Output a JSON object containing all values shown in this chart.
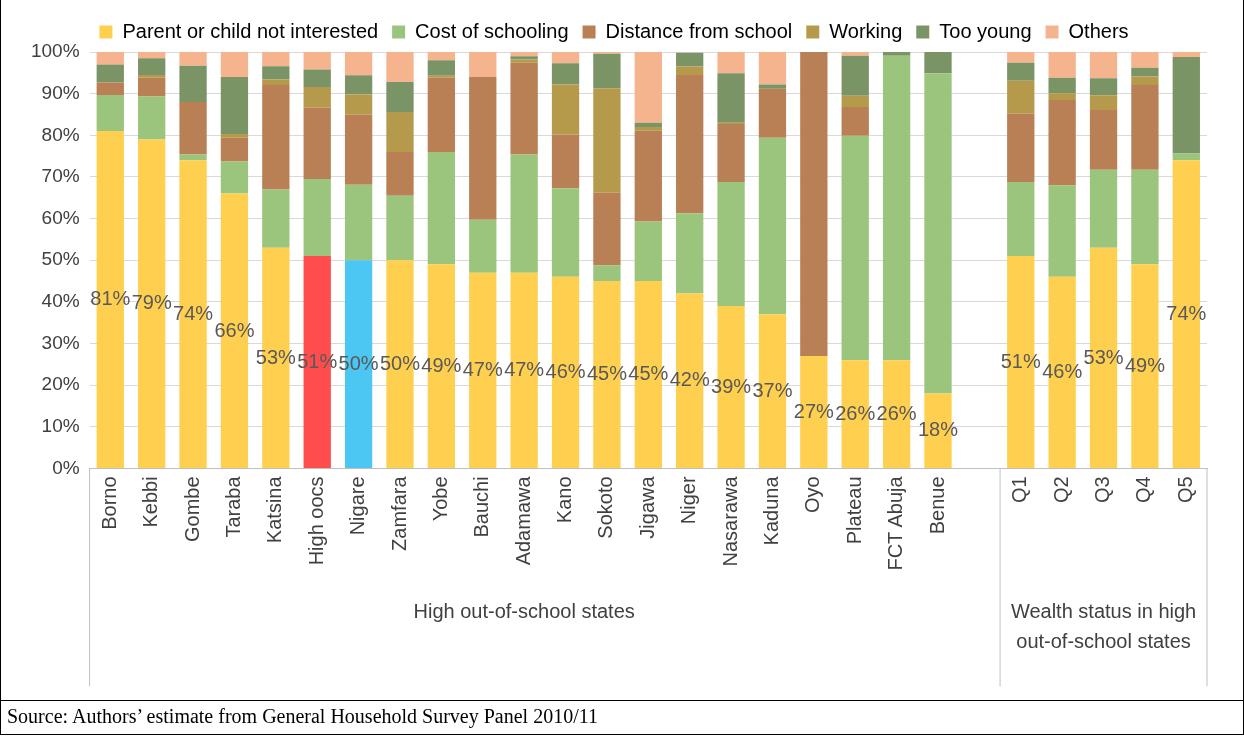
{
  "chart_data": {
    "type": "bar",
    "stacked": true,
    "legend": "top",
    "grid": "y",
    "categories": [
      "Borno",
      "Kebbi",
      "Gombe",
      "Taraba",
      "Katsina",
      "High oocs",
      "Nigare",
      "Zamfara",
      "Yobe",
      "Bauchi",
      "Adamawa",
      "Kano",
      "Sokoto",
      "Jigawa",
      "Niger",
      "Nasarawa",
      "Kaduna",
      "Oyo",
      "Plateau",
      "FCT Abuja",
      "Benue",
      null,
      "Q1",
      "Q2",
      "Q3",
      "Q4",
      "Q5"
    ],
    "ylim": [
      0,
      100
    ],
    "yticks": [
      {
        "value": 0,
        "label": "0%"
      },
      {
        "value": 10,
        "label": "10%"
      },
      {
        "value": 20,
        "label": "20%"
      },
      {
        "value": 30,
        "label": "30%"
      },
      {
        "value": 40,
        "label": "40%"
      },
      {
        "value": 50,
        "label": "50%"
      },
      {
        "value": 60,
        "label": "60%"
      },
      {
        "value": 70,
        "label": "70%"
      },
      {
        "value": 80,
        "label": "80%"
      },
      {
        "value": 90,
        "label": "90%"
      },
      {
        "value": 100,
        "label": "100%"
      }
    ],
    "series": [
      {
        "name": "Parent or child not interested",
        "color": "#ffd04f",
        "colors": [
          "#ffd04f",
          "#ffd04f",
          "#ffd04f",
          "#ffd04f",
          "#ffd04f",
          "#ff4c4c",
          "#4cc6f2",
          "#ffd04f",
          "#ffd04f",
          "#ffd04f",
          "#ffd04f",
          "#ffd04f",
          "#ffd04f",
          "#ffd04f",
          "#ffd04f",
          "#ffd04f",
          "#ffd04f",
          "#ffd04f",
          "#ffd04f",
          "#ffd04f",
          "#ffd04f",
          null,
          "#ffd04f",
          "#ffd04f",
          "#ffd04f",
          "#ffd04f",
          "#ffd04f"
        ],
        "values": [
          81,
          79,
          74,
          66,
          53,
          51,
          50,
          50,
          49,
          47,
          47,
          46,
          45,
          45,
          42,
          39,
          37,
          27,
          26,
          26,
          18,
          null,
          51,
          46,
          53,
          49,
          74
        ],
        "value_labels": [
          "81%",
          "79%",
          "74%",
          "66%",
          "53%",
          "51%",
          "50%",
          "50%",
          "49%",
          "47%",
          "47%",
          "46%",
          "45%",
          "45%",
          "42%",
          "39%",
          "37%",
          "27%",
          "26%",
          "26%",
          "18%",
          null,
          "51%",
          "46%",
          "53%",
          "49%",
          "74%"
        ]
      },
      {
        "name": "Cost of schooling",
        "color": "#9bc47c",
        "values": [
          8.7,
          10.3,
          1.4,
          7.7,
          14,
          18.5,
          18.1,
          15.5,
          27,
          12.7,
          28.4,
          21.3,
          3.8,
          14.3,
          19.3,
          29.8,
          42.4,
          0,
          53.9,
          73.1,
          76.9,
          null,
          17.8,
          22,
          18.7,
          22.7,
          1.6
        ]
      },
      {
        "name": "Distance from school",
        "color": "#b97f55",
        "values": [
          3,
          4.5,
          12.6,
          5.7,
          25.1,
          17.2,
          16.9,
          10.5,
          17.9,
          34.3,
          22,
          12.9,
          17.4,
          21.8,
          33.2,
          13.9,
          11.8,
          73,
          6.9,
          0,
          0,
          null,
          16.4,
          20.5,
          14.4,
          20.4,
          0
        ]
      },
      {
        "name": "Working",
        "color": "#b69a4b",
        "values": [
          0,
          0.7,
          0,
          0.9,
          1.3,
          4.9,
          4.8,
          9.6,
          0.4,
          0,
          0.8,
          12,
          25.1,
          0.9,
          2,
          0.3,
          0,
          0,
          2.7,
          0,
          0,
          null,
          7.9,
          1.6,
          3.5,
          2,
          0
        ]
      },
      {
        "name": "Too young",
        "color": "#7a9466",
        "values": [
          4.3,
          4,
          8.7,
          13.7,
          3.2,
          4.2,
          4.6,
          7.2,
          3.7,
          0,
          0.8,
          5.1,
          8.3,
          1,
          3.3,
          11.9,
          1,
          0,
          9.6,
          0.9,
          5.1,
          null,
          4.3,
          3.7,
          4.1,
          2.1,
          23.2
        ]
      },
      {
        "name": "Others",
        "color": "#f5b48e",
        "values": [
          3,
          1.5,
          3.3,
          6,
          3.4,
          4.2,
          5.6,
          7.2,
          2,
          6,
          1,
          2.7,
          0.4,
          17,
          0,
          5.1,
          7.8,
          0,
          0.9,
          0,
          0,
          null,
          2.6,
          6.2,
          6.3,
          3.8,
          1.2
        ]
      }
    ],
    "annotations": [
      "High out-of-school states",
      "Wealth status in high out-of-school states",
      "Source: Authors’ estimate from General Household Survey Panel 2010/11"
    ]
  }
}
